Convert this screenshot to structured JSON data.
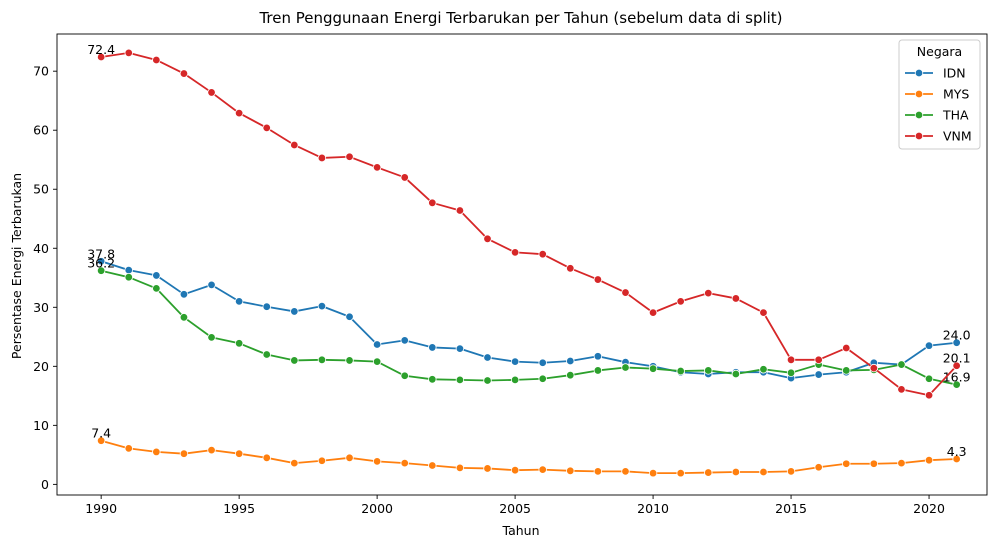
{
  "chart_data": {
    "type": "line",
    "title": "Tren Penggunaan Energi Terbarukan per Tahun (sebelum data di split)",
    "xlabel": "Tahun",
    "ylabel": "Persentase Energi Terbarukan",
    "xlim": [
      1988.4,
      2022.1
    ],
    "ylim": [
      -1.8,
      76.3
    ],
    "x_ticks": [
      1990,
      1995,
      2000,
      2005,
      2010,
      2015,
      2020
    ],
    "y_ticks": [
      0,
      10,
      20,
      30,
      40,
      50,
      60,
      70
    ],
    "grid": false,
    "legend": {
      "title": "Negara",
      "position": "top-right"
    },
    "x": [
      1990,
      1991,
      1992,
      1993,
      1994,
      1995,
      1996,
      1997,
      1998,
      1999,
      2000,
      2001,
      2002,
      2003,
      2004,
      2005,
      2006,
      2007,
      2008,
      2009,
      2010,
      2011,
      2012,
      2013,
      2014,
      2015,
      2016,
      2017,
      2018,
      2019,
      2020,
      2021
    ],
    "series": [
      {
        "name": "IDN",
        "color": "#1f77b4",
        "values": [
          37.8,
          36.3,
          35.4,
          32.2,
          33.8,
          31.0,
          30.1,
          29.3,
          30.2,
          28.4,
          23.7,
          24.4,
          23.2,
          23.0,
          21.5,
          20.8,
          20.6,
          20.9,
          21.7,
          20.7,
          20.0,
          19.0,
          18.7,
          19.0,
          19.0,
          18.0,
          18.6,
          19.0,
          20.6,
          20.3,
          23.5,
          24.0
        ],
        "annotations": [
          {
            "x": 1990,
            "text": "37.8",
            "anchor": "middle"
          },
          {
            "x": 2021,
            "text": "24.0",
            "anchor": "middle"
          }
        ]
      },
      {
        "name": "MYS",
        "color": "#ff7f0e",
        "values": [
          7.4,
          6.1,
          5.5,
          5.2,
          5.8,
          5.2,
          4.5,
          3.6,
          4.0,
          4.5,
          3.9,
          3.6,
          3.2,
          2.8,
          2.7,
          2.4,
          2.5,
          2.3,
          2.2,
          2.2,
          1.9,
          1.9,
          2.0,
          2.1,
          2.1,
          2.2,
          2.9,
          3.5,
          3.5,
          3.6,
          4.1,
          4.3
        ],
        "annotations": [
          {
            "x": 1990,
            "text": "7.4",
            "anchor": "middle"
          },
          {
            "x": 2021,
            "text": "4.3",
            "anchor": "end"
          }
        ]
      },
      {
        "name": "THA",
        "color": "#2ca02c",
        "values": [
          36.2,
          35.1,
          33.2,
          28.3,
          24.9,
          23.9,
          22.0,
          21.0,
          21.1,
          21.0,
          20.8,
          18.4,
          17.8,
          17.7,
          17.6,
          17.7,
          17.9,
          18.5,
          19.3,
          19.8,
          19.6,
          19.2,
          19.3,
          18.7,
          19.5,
          18.9,
          20.3,
          19.3,
          19.4,
          20.3,
          17.9,
          16.9
        ],
        "annotations": [
          {
            "x": 1990,
            "text": "36.2",
            "anchor": "middle"
          },
          {
            "x": 2021,
            "text": "16.9",
            "anchor": "middle"
          }
        ]
      },
      {
        "name": "VNM",
        "color": "#d62728",
        "values": [
          72.4,
          73.1,
          71.9,
          69.6,
          66.4,
          62.9,
          60.4,
          57.5,
          55.3,
          55.5,
          53.7,
          52.0,
          47.7,
          46.4,
          41.6,
          39.3,
          39.0,
          36.6,
          34.7,
          32.5,
          29.1,
          31.0,
          32.4,
          31.5,
          29.1,
          21.1,
          21.1,
          23.1,
          19.7,
          16.1,
          15.1,
          20.1
        ],
        "annotations": [
          {
            "x": 1990,
            "text": "72.4",
            "anchor": "middle"
          },
          {
            "x": 2021,
            "text": "20.1",
            "anchor": "middle"
          }
        ]
      }
    ]
  }
}
